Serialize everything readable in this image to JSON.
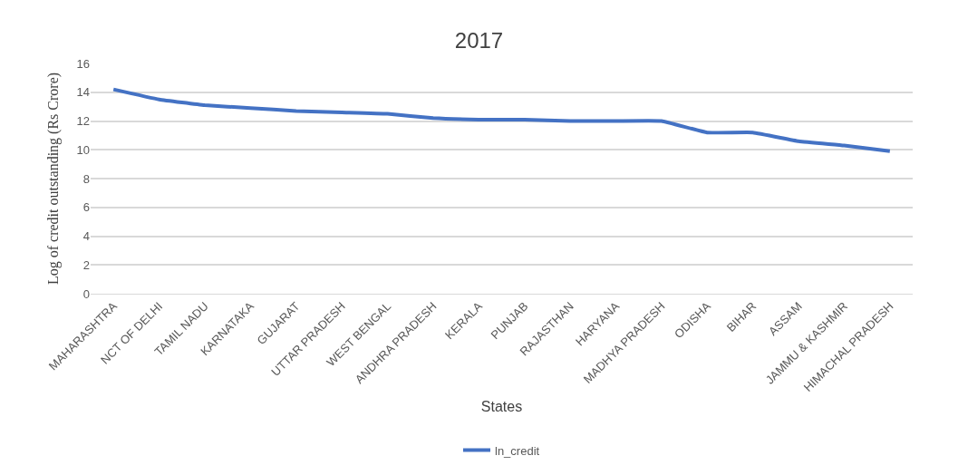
{
  "chart_data": {
    "type": "line",
    "title": "2017",
    "xlabel": "States",
    "ylabel": "Log of credit outstanding (Rs Crore)",
    "categories": [
      "MAHARASHTRA",
      "NCT OF DELHI",
      "TAMIL NADU",
      "KARNATAKA",
      "GUJARAT",
      "UTTAR PRADESH",
      "WEST BENGAL",
      "ANDHRA PRADESH",
      "KERALA",
      "PUNJAB",
      "RAJASTHAN",
      "HARYANA",
      "MADHYA PRADESH",
      "ODISHA",
      "BIHAR",
      "ASSAM",
      "JAMMU & KASHMIR",
      "HIMACHAL PRADESH"
    ],
    "series": [
      {
        "name": "ln_credit",
        "color": "#4472c4",
        "values": [
          14.2,
          13.5,
          13.1,
          12.9,
          12.7,
          12.6,
          12.5,
          12.2,
          12.1,
          12.1,
          12.0,
          12.0,
          12.0,
          11.2,
          11.2,
          10.6,
          10.3,
          9.9
        ]
      }
    ],
    "ylim": [
      0,
      16
    ],
    "yticks": [
      0,
      2,
      4,
      6,
      8,
      10,
      12,
      14,
      16
    ],
    "grid": "y",
    "legend": "bottom",
    "marker": "none",
    "line_style": "solid"
  }
}
